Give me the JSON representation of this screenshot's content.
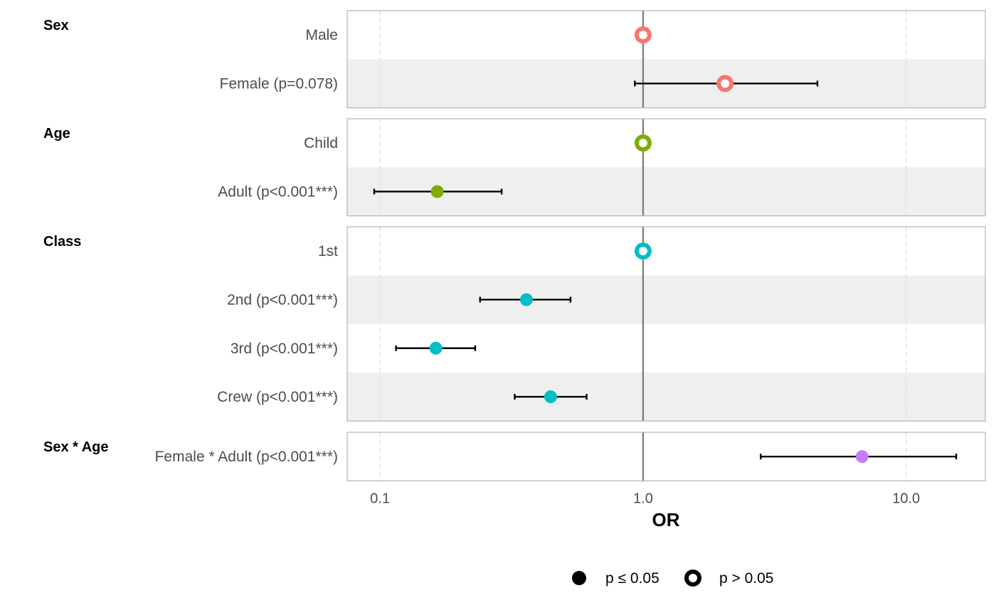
{
  "chart_data": {
    "type": "forest",
    "xlabel": "OR",
    "x_scale": "log",
    "xlim": [
      0.075,
      20
    ],
    "x_ticks": [
      {
        "value": 0.1,
        "label": "0.1"
      },
      {
        "value": 1.0,
        "label": "1.0"
      },
      {
        "value": 10.0,
        "label": "10.0"
      }
    ],
    "reference_line": 1.0,
    "groups": [
      {
        "name": "Sex",
        "color": "#F8766D",
        "rows": [
          {
            "label": "Male",
            "or": 1.0,
            "low": null,
            "high": null,
            "significant": false
          },
          {
            "label": "Female (p=0.078)",
            "or": 2.05,
            "low": 0.93,
            "high": 4.6,
            "significant": false
          }
        ]
      },
      {
        "name": "Age",
        "color": "#7CAE00",
        "rows": [
          {
            "label": "Child",
            "or": 1.0,
            "low": null,
            "high": null,
            "significant": false
          },
          {
            "label": "Adult (p<0.001***)",
            "or": 0.165,
            "low": 0.095,
            "high": 0.29,
            "significant": true
          }
        ]
      },
      {
        "name": "Class",
        "color": "#00BFC4",
        "rows": [
          {
            "label": "1st",
            "or": 1.0,
            "low": null,
            "high": null,
            "significant": false
          },
          {
            "label": "2nd (p<0.001***)",
            "or": 0.36,
            "low": 0.24,
            "high": 0.53,
            "significant": true
          },
          {
            "label": "3rd (p<0.001***)",
            "or": 0.163,
            "low": 0.115,
            "high": 0.23,
            "significant": true
          },
          {
            "label": "Crew (p<0.001***)",
            "or": 0.445,
            "low": 0.325,
            "high": 0.61,
            "significant": true
          }
        ]
      },
      {
        "name": "Sex * Age",
        "color": "#C77CFF",
        "rows": [
          {
            "label": "Female * Adult (p<0.001***)",
            "or": 6.8,
            "low": 2.8,
            "high": 15.5,
            "significant": true
          }
        ]
      }
    ],
    "legend": {
      "placement": "bottom",
      "items": [
        {
          "label": "p ≤ 0.05",
          "style": "filled"
        },
        {
          "label": "p > 0.05",
          "style": "hollow"
        }
      ]
    },
    "colors": {
      "panel_border": "#b3b3b3",
      "stripe": "#efefef",
      "grid": "#dddddd",
      "reference_line": "#808080"
    }
  }
}
